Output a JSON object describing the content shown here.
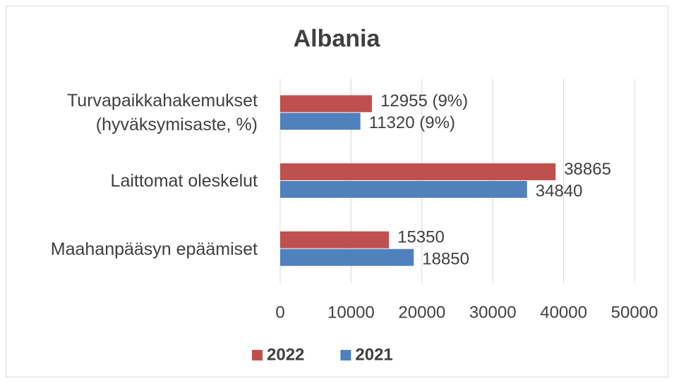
{
  "chart_data": {
    "type": "hbar",
    "title": "Albania",
    "categories": [
      "Turvapaikkahakemukset (hyväksymisaste, %)",
      "Laittomat oleskelut",
      "Maahanpääsyn epäämiset"
    ],
    "series": [
      {
        "name": "2022",
        "color": "#c0504d",
        "values": [
          12955,
          38865,
          15350
        ],
        "value_labels": [
          "12955 (9%)",
          "38865",
          "15350"
        ]
      },
      {
        "name": "2021",
        "color": "#4f81bd",
        "values": [
          11320,
          34840,
          18850
        ],
        "value_labels": [
          "11320 (9%)",
          "34840",
          "18850"
        ]
      }
    ],
    "xlim": [
      0,
      50000
    ],
    "xticks": [
      0,
      10000,
      20000,
      30000,
      40000,
      50000
    ],
    "grid": true,
    "legend": "bottom"
  }
}
